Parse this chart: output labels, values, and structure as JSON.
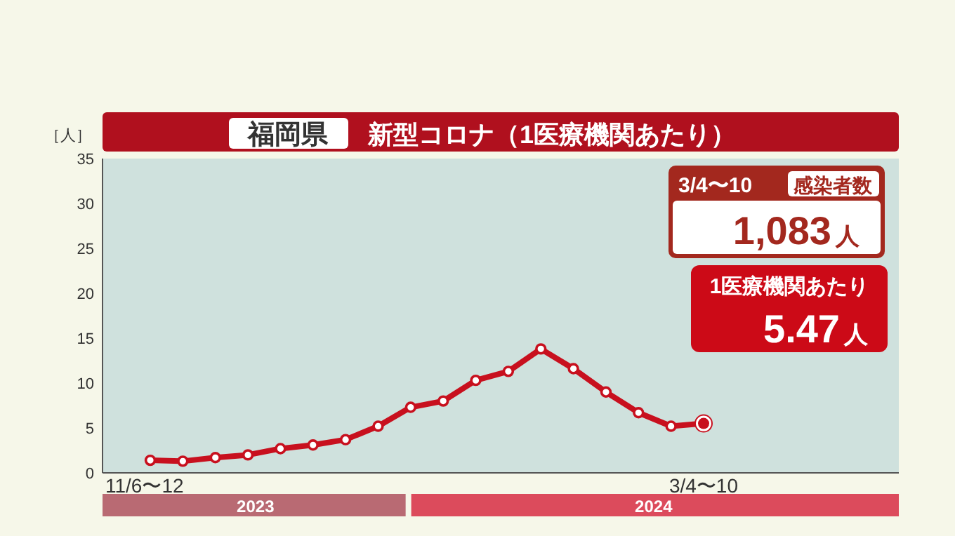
{
  "chart_data": {
    "type": "line",
    "title": "福岡県",
    "subtitle": "新型コロナ（1医療機関あたり）",
    "ylabel": "［人］",
    "categories": [
      "11/6〜12",
      null,
      null,
      null,
      null,
      null,
      null,
      null,
      null,
      null,
      null,
      null,
      null,
      null,
      null,
      null,
      null,
      "3/4〜10"
    ],
    "series": [
      {
        "color": "#c8101e",
        "values": [
          1.4,
          1.3,
          1.7,
          2.0,
          2.7,
          3.1,
          3.7,
          5.2,
          7.3,
          8.0,
          10.3,
          11.3,
          13.8,
          11.6,
          9.0,
          6.7,
          5.2,
          5.5
        ]
      }
    ],
    "ylim": [
      0,
      35
    ],
    "yticks": [
      0,
      5,
      10,
      15,
      20,
      25,
      30,
      35
    ],
    "grid": false,
    "marker": "circle",
    "line_style": "solid",
    "annotations": [
      "3/4〜10",
      "感染者数",
      "1,083人",
      "1医療機関あたり",
      "5.47人",
      "2023",
      "2024"
    ]
  }
}
